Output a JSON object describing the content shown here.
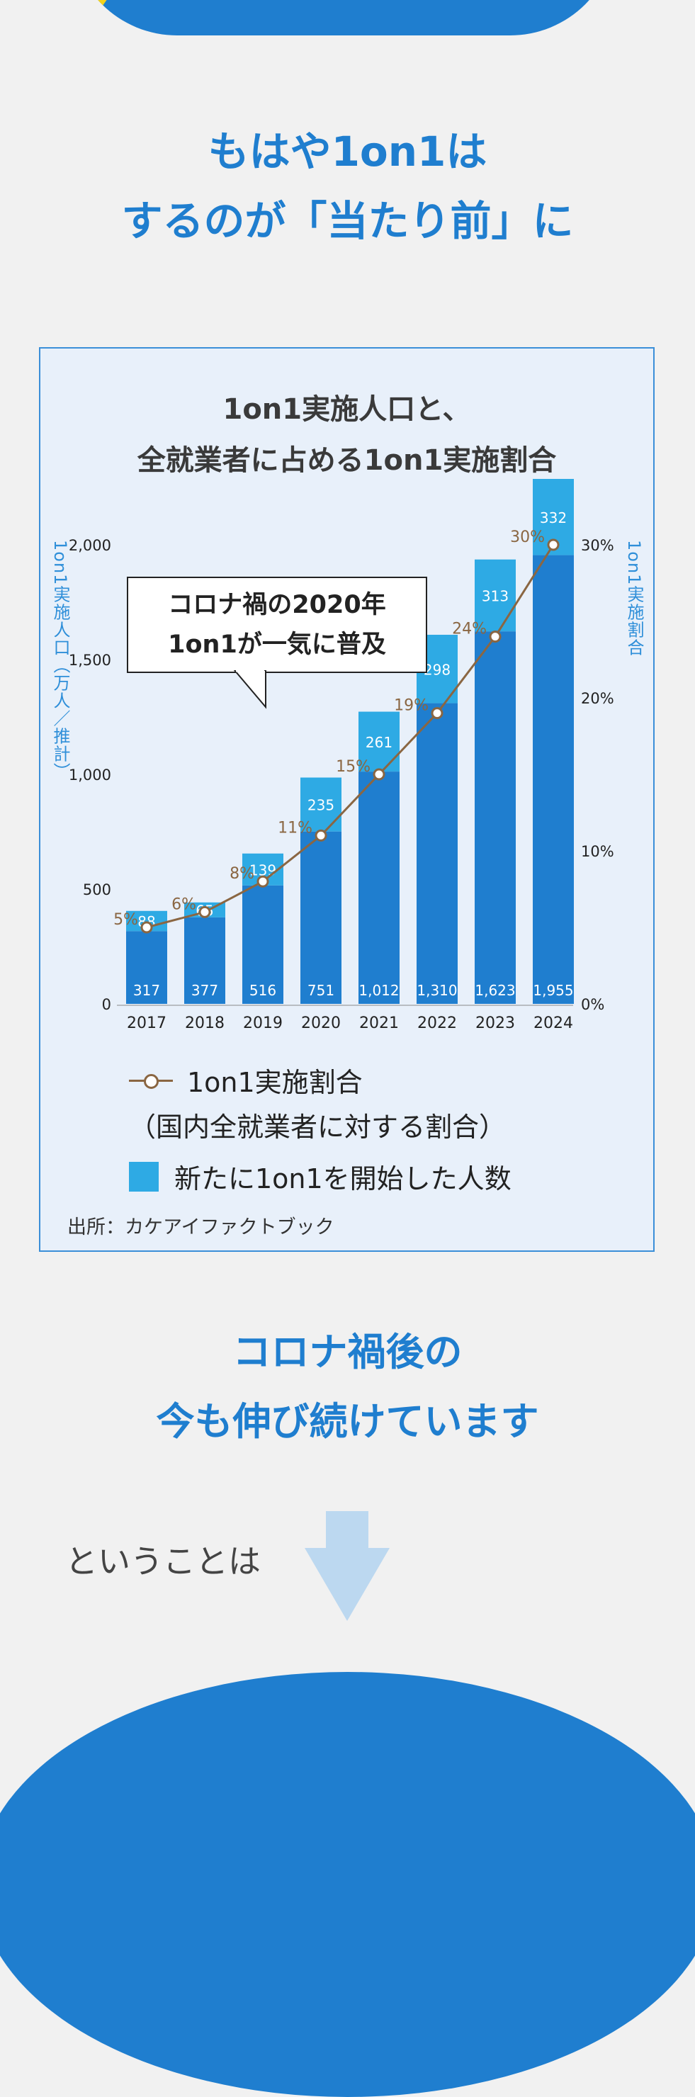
{
  "headline": {
    "line1": "もはや1on1は",
    "line2": "するのが「当たり前」に"
  },
  "panel_title": {
    "line1": "1on1実施人口と、",
    "line2": "全就業者に占める1on1実施割合"
  },
  "callout": {
    "line1": "コロナ禍の2020年",
    "line2": "1on1が一気に普及"
  },
  "legend": {
    "line_label": "1on1実施割合",
    "line_sub": "（国内全就業者に対する割合）",
    "bar_label": "新たに1on1を開始した人数"
  },
  "source": "出所：カケアイファクトブック",
  "subheading": {
    "line1": "コロナ禍後の",
    "line2": "今も伸び続けています"
  },
  "lead_text": "ということは",
  "colors": {
    "accent": "#1f7ecf",
    "bar_base": "#1f7ecf",
    "bar_new": "#2eaae4",
    "line": "#8a6642",
    "highlight": "#f4d21b"
  },
  "chart_data": {
    "type": "bar",
    "title": "1on1実施人口と、全就業者に占める1on1実施割合",
    "categories": [
      "2017",
      "2018",
      "2019",
      "2020",
      "2021",
      "2022",
      "2023",
      "2024"
    ],
    "series": [
      {
        "name": "",
        "values": [
          317,
          377,
          516,
          751,
          1012,
          1310,
          1623,
          1955
        ],
        "labels": [
          "317",
          "377",
          "516",
          "751",
          "1,012",
          "1,310",
          "1,623",
          "1,955"
        ]
      },
      {
        "name": "新たに1on1を開始した人数",
        "values": [
          88,
          65,
          139,
          235,
          261,
          298,
          313,
          332
        ],
        "labels": [
          "88",
          "65",
          "139",
          "235",
          "261",
          "298",
          "313",
          "332"
        ]
      },
      {
        "name": "1on1実施割合",
        "type": "line",
        "values": [
          5,
          6,
          8,
          11,
          15,
          19,
          24,
          30
        ],
        "labels": [
          "5%",
          "6%",
          "8%",
          "11%",
          "15%",
          "19%",
          "24%",
          "30%"
        ]
      }
    ],
    "ylabel": "1on1実施人口（万人／推計）",
    "ylabel_right": "1on1実施割合",
    "ylim": [
      0,
      2000
    ],
    "yticks": [
      "0",
      "500",
      "1,000",
      "1,500",
      "2,000"
    ],
    "ylim_right": [
      0,
      30
    ],
    "yticks_right": [
      "0%",
      "10%",
      "20%",
      "30%"
    ]
  }
}
